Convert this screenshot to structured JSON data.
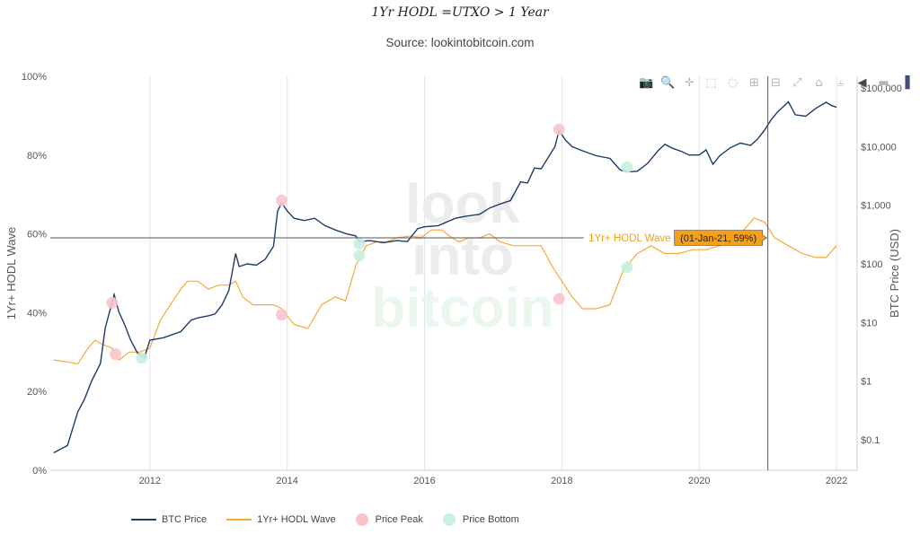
{
  "title": "1Yr HODL =UTXO > 1 Year",
  "subtitle": "Source: lookintobitcoin.com",
  "watermark": [
    "look",
    "into",
    "bitcoin"
  ],
  "colors": {
    "btc_price": "#1d3b6b",
    "hodl_wave": "#f7a935",
    "price_peak": "#f7c4cc",
    "price_bottom": "#c9f0e0",
    "tooltip_bg": "#f5a01a",
    "tooltip_text": "#f5a01a",
    "watermark_grey": "#ececec",
    "watermark_green": "#e9f7ec"
  },
  "modebar": {
    "icons": [
      "camera-icon",
      "zoom-icon",
      "pan-icon",
      "box-select-icon",
      "lasso-icon",
      "zoom-in-icon",
      "zoom-out-icon",
      "autoscale-icon",
      "home-icon",
      "spike-lines-icon",
      "hover-closest-icon",
      "hover-compare-icon",
      "plotly-logo-icon"
    ]
  },
  "tooltip": {
    "series_label": "1Yr+ HODL Wave",
    "value_label": "(01-Jan-21, 59%)"
  },
  "legend": [
    {
      "label": "BTC Price",
      "kind": "line",
      "color": "#1d3b6b"
    },
    {
      "label": "1Yr+ HODL Wave",
      "kind": "line",
      "color": "#f7a935"
    },
    {
      "label": "Price Peak",
      "kind": "dot",
      "color": "#f7c4cc"
    },
    {
      "label": "Price Bottom",
      "kind": "dot",
      "color": "#c9f0e0"
    }
  ],
  "chart_data": {
    "type": "line",
    "title": "1Yr HODL =UTXO > 1 Year",
    "xlabel": "",
    "ylabel": "1Yr+ HODL Wave",
    "y2label": "BTC Price (USD)",
    "xlim": [
      2010.55,
      2022.3
    ],
    "ylim": [
      0,
      100
    ],
    "y2lim_log10": [
      -1.52,
      5.2
    ],
    "x_ticks": [
      2012,
      2014,
      2016,
      2018,
      2020,
      2022
    ],
    "x_tick_labels": [
      "2012",
      "2014",
      "2016",
      "2018",
      "2020",
      "2022"
    ],
    "y_ticks": [
      0,
      20,
      40,
      60,
      80,
      100
    ],
    "y_tick_labels": [
      "0%",
      "20%",
      "40%",
      "60%",
      "80%",
      "100%"
    ],
    "y2_ticks": [
      0.1,
      1,
      10,
      100,
      1000,
      10000,
      100000
    ],
    "y2_tick_labels": [
      "$0.1",
      "$1",
      "$10",
      "$100",
      "$1,000",
      "$10,000",
      "$100,000"
    ],
    "grid": true,
    "legend_position": "bottom",
    "crosshair": {
      "x": 2021.0,
      "y": 59
    },
    "series": [
      {
        "name": "BTC Price",
        "axis": "right_log",
        "x": [
          2010.6,
          2010.8,
          2010.95,
          2011.05,
          2011.15,
          2011.28,
          2011.35,
          2011.44,
          2011.48,
          2011.55,
          2011.62,
          2011.72,
          2011.82,
          2011.92,
          2012.0,
          2012.2,
          2012.45,
          2012.6,
          2012.7,
          2012.85,
          2012.95,
          2013.05,
          2013.15,
          2013.25,
          2013.3,
          2013.42,
          2013.55,
          2013.68,
          2013.8,
          2013.86,
          2013.92,
          2014.0,
          2014.1,
          2014.25,
          2014.4,
          2014.55,
          2014.7,
          2014.85,
          2015.0,
          2015.05,
          2015.2,
          2015.4,
          2015.6,
          2015.75,
          2015.9,
          2016.0,
          2016.2,
          2016.45,
          2016.6,
          2016.8,
          2016.95,
          2017.1,
          2017.25,
          2017.4,
          2017.5,
          2017.6,
          2017.7,
          2017.8,
          2017.9,
          2017.96,
          2018.05,
          2018.15,
          2018.3,
          2018.5,
          2018.7,
          2018.85,
          2018.95,
          2019.1,
          2019.25,
          2019.4,
          2019.5,
          2019.6,
          2019.75,
          2019.85,
          2020.0,
          2020.1,
          2020.2,
          2020.3,
          2020.45,
          2020.6,
          2020.75,
          2020.85,
          2020.95,
          2021.05,
          2021.15,
          2021.3,
          2021.4,
          2021.55,
          2021.7,
          2021.85,
          2021.93,
          2022.0
        ],
        "values": [
          0.06,
          0.08,
          0.3,
          0.5,
          1,
          2,
          8,
          20,
          30,
          15,
          10,
          5,
          3,
          2.5,
          5,
          5.5,
          7,
          11,
          12,
          13,
          14,
          20,
          35,
          150,
          90,
          100,
          95,
          120,
          200,
          800,
          1100,
          800,
          600,
          550,
          600,
          450,
          380,
          330,
          300,
          240,
          250,
          230,
          250,
          240,
          400,
          430,
          450,
          600,
          650,
          700,
          900,
          1050,
          1200,
          2500,
          2400,
          4300,
          4200,
          6500,
          10000,
          19000,
          13000,
          10000,
          8500,
          7000,
          6300,
          4000,
          3700,
          3800,
          5200,
          8500,
          11000,
          9500,
          8200,
          7200,
          7200,
          8800,
          5000,
          7000,
          9500,
          11500,
          10500,
          13500,
          19000,
          29000,
          40000,
          58000,
          35000,
          33000,
          45000,
          57000,
          50000,
          47000
        ]
      },
      {
        "name": "1Yr+ HODL Wave",
        "axis": "left",
        "x": [
          2010.6,
          2010.8,
          2010.95,
          2011.1,
          2011.2,
          2011.3,
          2011.45,
          2011.55,
          2011.7,
          2011.85,
          2012.0,
          2012.15,
          2012.3,
          2012.45,
          2012.55,
          2012.7,
          2012.85,
          2013.0,
          2013.15,
          2013.25,
          2013.35,
          2013.5,
          2013.65,
          2013.8,
          2013.92,
          2014.1,
          2014.3,
          2014.5,
          2014.7,
          2014.85,
          2015.0,
          2015.15,
          2015.3,
          2015.45,
          2015.6,
          2015.8,
          2015.95,
          2016.1,
          2016.25,
          2016.4,
          2016.5,
          2016.65,
          2016.8,
          2016.95,
          2017.1,
          2017.3,
          2017.5,
          2017.7,
          2017.85,
          2018.0,
          2018.15,
          2018.3,
          2018.5,
          2018.7,
          2018.9,
          2019.1,
          2019.3,
          2019.5,
          2019.7,
          2019.9,
          2020.1,
          2020.3,
          2020.5,
          2020.65,
          2020.8,
          2020.95,
          2021.1,
          2021.3,
          2021.5,
          2021.7,
          2021.85,
          2022.0
        ],
        "values": [
          28,
          27.5,
          27,
          31,
          33,
          32,
          31,
          28,
          30,
          30,
          31,
          38,
          42,
          46,
          48,
          48,
          46,
          47,
          47,
          48,
          44,
          42,
          42,
          42,
          41,
          37,
          36,
          42,
          44,
          43,
          52,
          57,
          58,
          58,
          59,
          59.5,
          59,
          61,
          61,
          59,
          58,
          59,
          59,
          60,
          58,
          57,
          57,
          57,
          52,
          48,
          44,
          41,
          41,
          42,
          51,
          55,
          57,
          55,
          55,
          56,
          56,
          57,
          58,
          61,
          64,
          63,
          59,
          57,
          55,
          54,
          54,
          57
        ]
      },
      {
        "name": "Price Peak",
        "kind": "markers",
        "x": [
          2011.45,
          2011.5,
          2013.92,
          2013.92,
          2017.96,
          2017.96
        ],
        "values_left": [
          42.5,
          29.5,
          68.5,
          39.5,
          86.5,
          43.5
        ]
      },
      {
        "name": "Price Bottom",
        "kind": "markers",
        "x": [
          2011.88,
          2015.05,
          2015.05,
          2018.95,
          2018.95
        ],
        "values_left": [
          28.5,
          57.5,
          54.5,
          77,
          51.5
        ]
      }
    ]
  }
}
